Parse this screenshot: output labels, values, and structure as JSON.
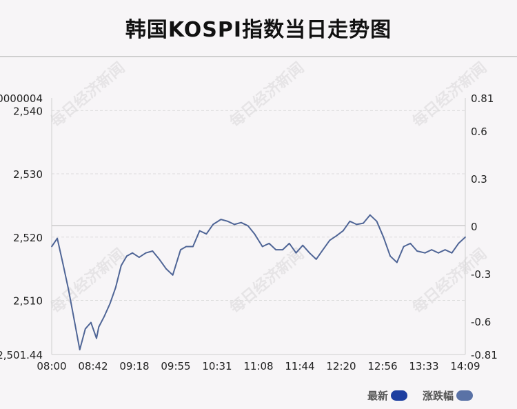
{
  "title": "韩国KOSPI指数当日走势图",
  "watermark": "每日经济新闻",
  "legend": [
    {
      "label": "最新",
      "color": "#1e3fa0"
    },
    {
      "label": "涨跌幅",
      "color": "#5a72a6"
    }
  ],
  "chart_data": {
    "type": "line",
    "title": "韩国KOSPI指数当日走势图",
    "xlabel": "",
    "ylabel": "",
    "x_ticks": [
      "08:00",
      "08:42",
      "09:18",
      "09:55",
      "10:31",
      "11:08",
      "11:44",
      "12:20",
      "12:56",
      "13:33",
      "14:09"
    ],
    "y_left_ticks": [
      "2,501.44",
      "2,510",
      "2,520",
      "2,530",
      "2,540",
      "0000004"
    ],
    "y_left_range": [
      2501.44,
      2542.0
    ],
    "y_right_ticks": [
      "-0.81",
      "-0.6",
      "-0.3",
      "0",
      "0.3",
      "0.6",
      "0.81"
    ],
    "y_right_range": [
      -0.81,
      0.81
    ],
    "reference_level": 2521.8,
    "grid": "horizontal-dashed",
    "line_color": "#4f6596",
    "series": [
      {
        "x": [
          "08:00",
          "08:05",
          "08:10",
          "08:15",
          "08:20",
          "08:25",
          "08:30",
          "08:35",
          "08:40",
          "08:42",
          "08:47",
          "08:52",
          "08:57",
          "09:02",
          "09:07",
          "09:12",
          "09:18",
          "09:24",
          "09:30",
          "09:36",
          "09:42",
          "09:48",
          "09:55",
          "10:00",
          "10:06",
          "10:12",
          "10:18",
          "10:24",
          "10:31",
          "10:37",
          "10:43",
          "10:49",
          "10:55",
          "11:01",
          "11:08",
          "11:14",
          "11:20",
          "11:26",
          "11:32",
          "11:38",
          "11:44",
          "11:50",
          "11:56",
          "12:02",
          "12:08",
          "12:14",
          "12:20",
          "12:26",
          "12:32",
          "12:38",
          "12:44",
          "12:50",
          "12:56",
          "13:02",
          "13:08",
          "13:14",
          "13:20",
          "13:26",
          "13:33",
          "13:39",
          "13:45",
          "13:51",
          "13:57",
          "14:03",
          "14:09"
        ],
        "values": [
          2518.5,
          2519.8,
          2515.8,
          2511.7,
          2507.0,
          2502.2,
          2505.5,
          2506.5,
          2504.0,
          2505.8,
          2507.5,
          2509.5,
          2512.0,
          2515.5,
          2517.0,
          2517.5,
          2516.8,
          2517.5,
          2517.8,
          2516.5,
          2515.0,
          2514.0,
          2518.0,
          2518.5,
          2518.5,
          2521.0,
          2520.5,
          2522.0,
          2522.8,
          2522.5,
          2522.0,
          2522.3,
          2521.8,
          2520.5,
          2518.5,
          2519.0,
          2518.0,
          2518.0,
          2519.0,
          2517.5,
          2518.7,
          2517.5,
          2516.5,
          2518.0,
          2519.5,
          2520.2,
          2521.0,
          2522.5,
          2522.0,
          2522.2,
          2523.5,
          2522.5,
          2520.0,
          2517.0,
          2516.0,
          2518.5,
          2519.0,
          2517.8,
          2517.5,
          2518.0,
          2517.5,
          2518.0,
          2517.5,
          2519.0,
          2520.0
        ]
      }
    ]
  }
}
